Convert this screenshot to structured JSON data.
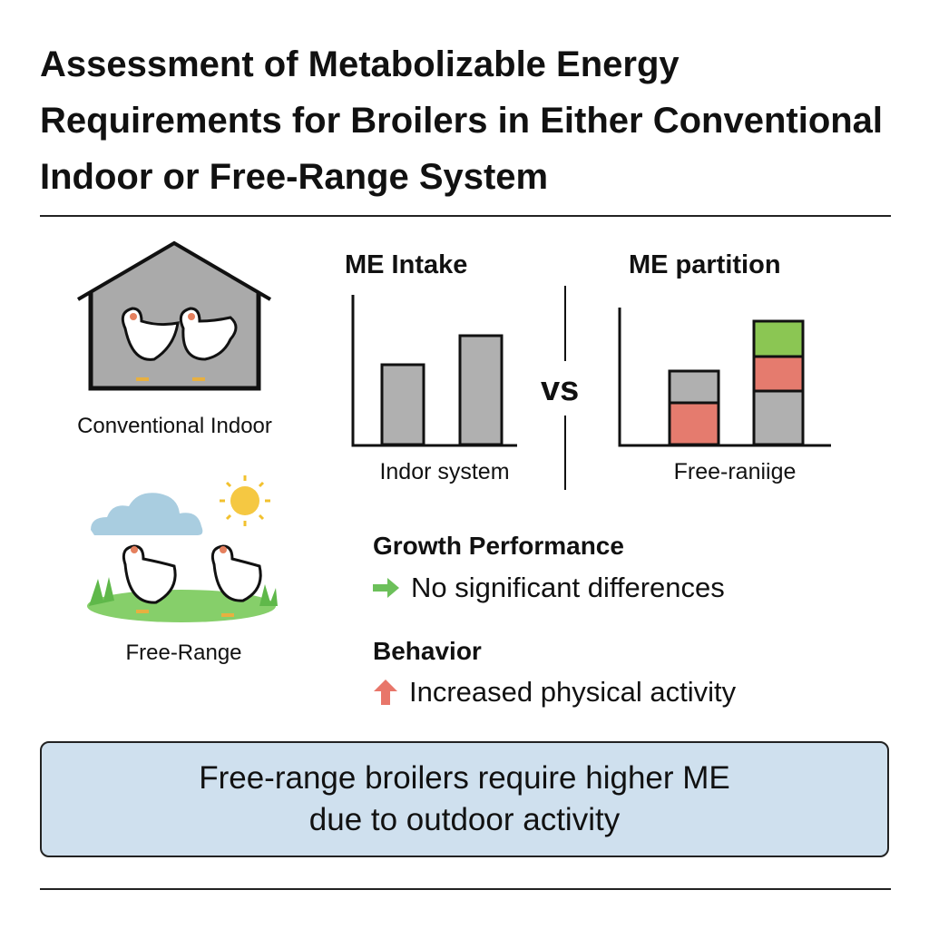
{
  "title": "Assessment of Metabolizable Energy Requirements for Broilers in Either Conventional Indoor or Free-Range System",
  "systems": {
    "indoor_label": "Conventional Indoor",
    "freerange_label": "Free-Range"
  },
  "comparison": {
    "vs_label": "vs",
    "intake_chart": {
      "title": "ME Intake",
      "xlabel": "Indor system",
      "type": "bar",
      "values": [
        88,
        120
      ],
      "bar_color": "#b0b0b0"
    },
    "partition_chart": {
      "title": "ME partition",
      "xlabel": "Free-raniige",
      "type": "stacked-bar",
      "stacks": [
        [
          {
            "color": "#e57b6e",
            "value": 46
          },
          {
            "color": "#b0b0b0",
            "value": 35
          }
        ],
        [
          {
            "color": "#b0b0b0",
            "value": 59
          },
          {
            "color": "#e57b6e",
            "value": 38
          },
          {
            "color": "#8bc653",
            "value": 39
          }
        ]
      ]
    }
  },
  "findings": [
    {
      "heading": "Growth Performance",
      "icon": "arrow-right-icon",
      "color": "#6cc05a",
      "text": "No significant differences"
    },
    {
      "heading": "Behavior",
      "icon": "arrow-up-icon",
      "color": "#e8766a",
      "text": "Increased physical activity"
    }
  ],
  "summary": {
    "line1": "Free-range broilers require higher ME",
    "line2": "due to outdoor activity",
    "background": "#cfe0ee"
  }
}
